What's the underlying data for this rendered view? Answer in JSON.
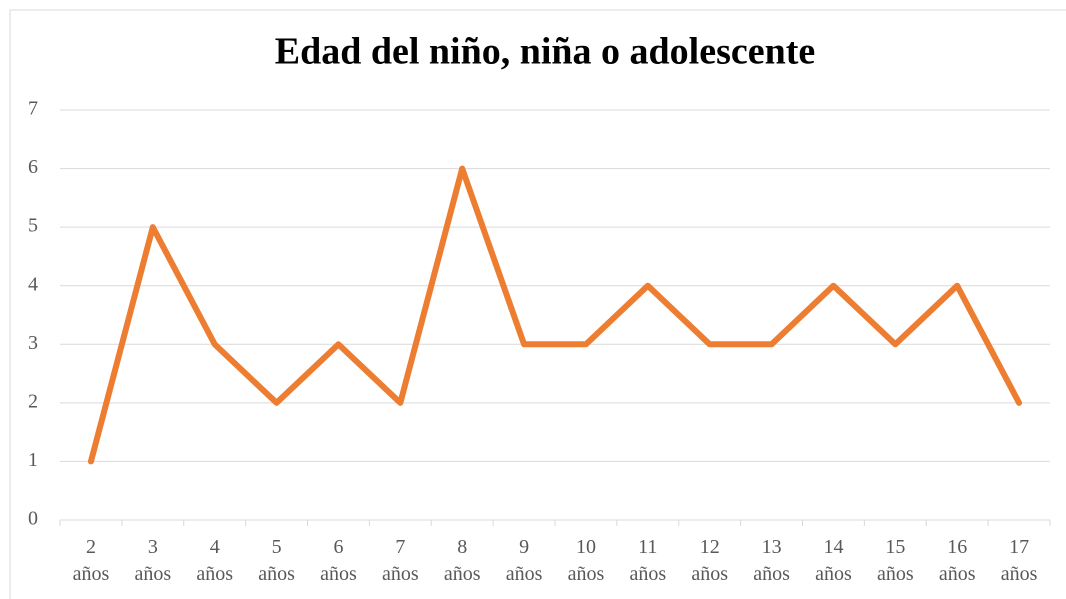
{
  "chart_data": {
    "type": "line",
    "title": "Edad del niño, niña o adolescente",
    "categories": [
      "2 años",
      "3 años",
      "4 años",
      "5 años",
      "6 años",
      "7 años",
      "8 años",
      "9 años",
      "10 años",
      "11 años",
      "12 años",
      "13 años",
      "14 años",
      "15 años",
      "16 años",
      "17 años"
    ],
    "values": [
      1,
      5,
      3,
      2,
      3,
      2,
      6,
      3,
      3,
      4,
      3,
      3,
      4,
      3,
      4,
      2
    ],
    "color": "#ed7d31",
    "ylim": [
      0,
      7
    ],
    "yticks": [
      0,
      1,
      2,
      3,
      4,
      5,
      6,
      7
    ],
    "grid": true
  }
}
